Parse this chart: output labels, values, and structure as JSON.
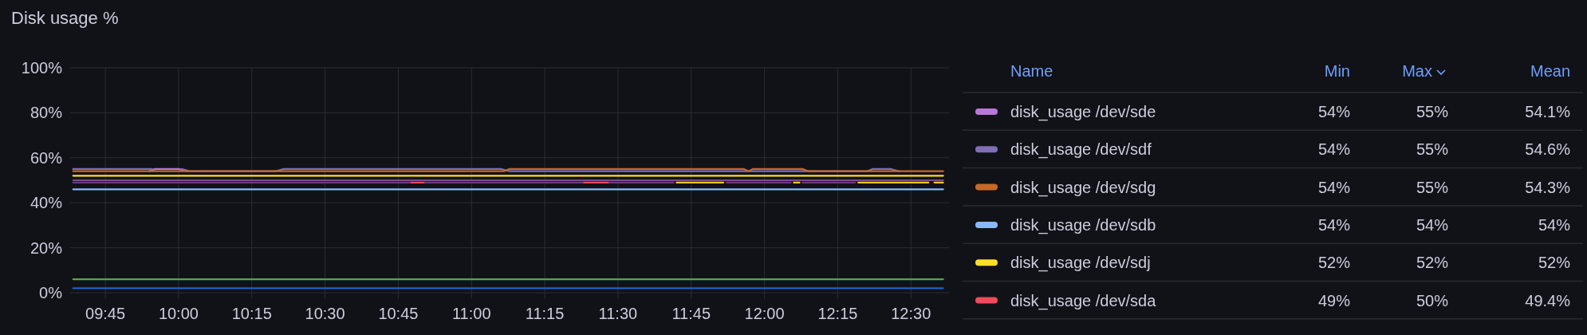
{
  "chart_data": {
    "type": "line",
    "title": "Disk usage %",
    "xlim": [
      9.63,
      12.63
    ],
    "ylim": [
      0,
      100
    ],
    "xticks": [
      {
        "value": 9.75,
        "label": "09:45"
      },
      {
        "value": 10,
        "label": "10:00"
      },
      {
        "value": 10.25,
        "label": "10:15"
      },
      {
        "value": 10.5,
        "label": "10:30"
      },
      {
        "value": 10.75,
        "label": "10:45"
      },
      {
        "value": 11,
        "label": "11:00"
      },
      {
        "value": 11.25,
        "label": "11:15"
      },
      {
        "value": 11.5,
        "label": "11:30"
      },
      {
        "value": 11.75,
        "label": "11:45"
      },
      {
        "value": 12,
        "label": "12:00"
      },
      {
        "value": 12.25,
        "label": "12:15"
      },
      {
        "value": 12.5,
        "label": "12:30"
      }
    ],
    "yticks": [
      {
        "value": 0,
        "label": "0%"
      },
      {
        "value": 20,
        "label": "20%"
      },
      {
        "value": 40,
        "label": "40%"
      },
      {
        "value": 60,
        "label": "60%"
      },
      {
        "value": 80,
        "label": "80%"
      },
      {
        "value": 100,
        "label": "100%"
      }
    ],
    "grid": true,
    "legend": "right",
    "series": [
      {
        "name": "disk_usage /dev/sde",
        "color": "#b877d9",
        "x": [
          9.9,
          9.92,
          10.0,
          10.03
        ],
        "values": [
          54,
          55,
          55,
          54
        ]
      },
      {
        "name": "disk_usage /dev/sdf",
        "color": "#806eb7",
        "x": [
          9.64,
          9.91,
          9.96,
          10.01,
          10.04,
          10.33,
          10.36,
          11.1,
          11.13,
          12.35,
          12.37,
          12.43,
          12.46
        ],
        "values": [
          55,
          55,
          null,
          55,
          54,
          54,
          55,
          55,
          54,
          54,
          55,
          55,
          54
        ]
      },
      {
        "name": "disk_usage /dev/sdg",
        "color": "#c4692a",
        "x": [
          9.64,
          11.11,
          11.13,
          11.93,
          11.946,
          11.96,
          12.13,
          12.15,
          12.61
        ],
        "values": [
          54,
          54,
          55,
          55,
          54,
          55,
          55,
          54,
          54
        ]
      },
      {
        "name": "disk_usage /dev/sdb",
        "color": "#8ab8ff",
        "x": [
          9.64,
          12.61
        ],
        "values": [
          46,
          46
        ]
      },
      {
        "name": "disk_usage /dev/sdj",
        "color": "#fade2a",
        "x": [
          9.64,
          12.61
        ],
        "values": [
          52,
          52
        ]
      },
      {
        "name": "disk_usage /dev/sda",
        "color": "#f2495c",
        "x": [
          10.79,
          10.84,
          11.1,
          11.38,
          11.47
        ],
        "values": [
          49,
          49,
          null,
          49,
          49
        ]
      },
      {
        "color": "#7a4d8f",
        "x": [
          9.64,
          12.61
        ],
        "values": [
          50,
          50
        ]
      },
      {
        "color": "#6a3d80",
        "x": [
          9.64,
          10.79,
          10.815,
          10.84,
          11.38,
          11.425,
          11.47,
          11.69,
          11.78,
          11.87,
          12.09,
          12.11,
          12.13,
          12.31
        ],
        "values": [
          49,
          49,
          null,
          49,
          49,
          null,
          49,
          49,
          null,
          49,
          49,
          null,
          49,
          49
        ]
      },
      {
        "color": "#f2cc0c",
        "x": [
          11.7,
          11.86,
          11.87,
          12.1,
          12.12,
          12.13,
          12.32,
          12.56,
          12.57,
          12.58,
          12.61
        ],
        "values": [
          49,
          49,
          null,
          49,
          49,
          null,
          49,
          49,
          null,
          49,
          49
        ]
      },
      {
        "color": "#56a64b",
        "x": [
          9.64,
          12.61
        ],
        "values": [
          6,
          6
        ]
      },
      {
        "color": "#1f60c4",
        "x": [
          9.64,
          12.61
        ],
        "values": [
          2,
          2
        ]
      }
    ],
    "annotations": [
      "Name",
      "Min",
      "Max",
      "Mean",
      "54%",
      "55%",
      "54.1%",
      "54%",
      "55%",
      "54.6%",
      "54%",
      "55%",
      "54.3%",
      "54%",
      "54%",
      "54%",
      "52%",
      "52%",
      "52%",
      "49%",
      "50%",
      "49.4%"
    ]
  }
}
